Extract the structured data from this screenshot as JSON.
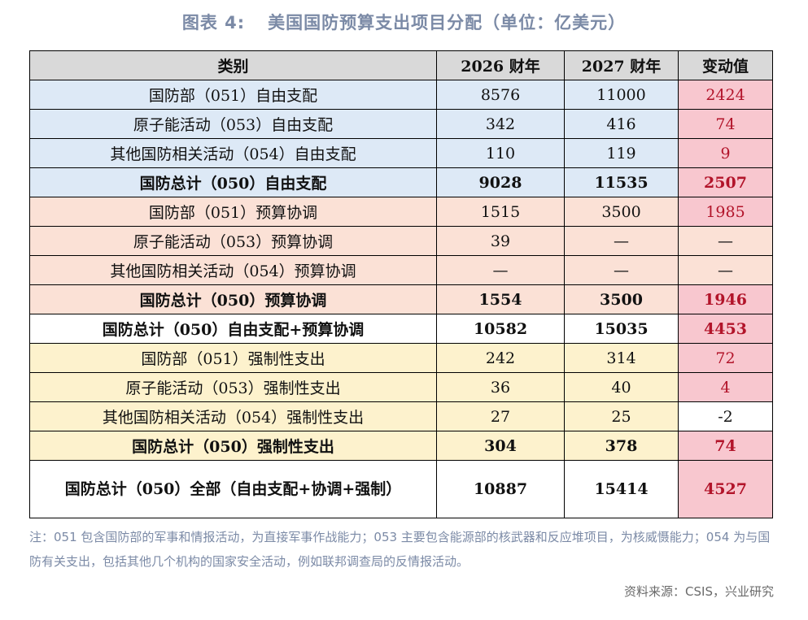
{
  "title": {
    "figure_no": "图表 4:",
    "text": "美国国防预算支出项目分配（单位：亿美元）"
  },
  "table": {
    "headers": [
      "类别",
      "2026 财年",
      "2027 财年",
      "变动值"
    ],
    "rows": [
      [
        "国防部（051）自由支配",
        "8576",
        "11000",
        "2424"
      ],
      [
        "原子能活动（053）自由支配",
        "342",
        "416",
        "74"
      ],
      [
        "其他国防相关活动（054）自由支配",
        "110",
        "119",
        "9"
      ],
      [
        "国防总计（050）自由支配",
        "9028",
        "11535",
        "2507"
      ],
      [
        "国防部（051）预算协调",
        "1515",
        "3500",
        "1985"
      ],
      [
        "原子能活动（053）预算协调",
        "39",
        "—",
        "—"
      ],
      [
        "其他国防相关活动（054）预算协调",
        "—",
        "—",
        "—"
      ],
      [
        "国防总计（050）预算协调",
        "1554",
        "3500",
        "1946"
      ],
      [
        "国防总计（050）自由支配+预算协调",
        "10582",
        "15035",
        "4453"
      ],
      [
        "国防部（051）强制性支出",
        "242",
        "314",
        "72"
      ],
      [
        "原子能活动（053）强制性支出",
        "36",
        "40",
        "4"
      ],
      [
        "其他国防相关活动（054）强制性支出",
        "27",
        "25",
        "-2"
      ],
      [
        "国防总计（050）强制性支出",
        "304",
        "378",
        "74"
      ],
      [
        "国防总计（050）全部（自由支配+协调+强制）",
        "10887",
        "15414",
        "4527"
      ]
    ]
  },
  "note": "注：051 包含国防部的军事和情报活动，为直接军事作战能力；053 主要包含能源部的核武器和反应堆项目，为核威慑能力；054 为与国防有关支出，包括其他几个机构的国家安全活动，例如联邦调查局的反情报活动。",
  "source": "资料来源：CSIS，兴业研究",
  "colors": {
    "title": "#7b8aa6",
    "header_bg": "#d9d9d9",
    "discretionary_bg": "#dde9f6",
    "reconciliation_bg": "#fbe1d6",
    "mandatory_bg": "#fdf2cd",
    "change_bg": "#f8c7cf",
    "change_text": "#b2142a"
  }
}
